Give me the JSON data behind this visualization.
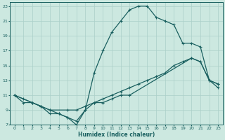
{
  "xlabel": "Humidex (Indice chaleur)",
  "bg_color": "#cce8e0",
  "grid_color": "#aacfc8",
  "line_color": "#1a6060",
  "xlim": [
    -0.5,
    23.5
  ],
  "ylim": [
    7,
    23.5
  ],
  "xticks": [
    0,
    1,
    2,
    3,
    4,
    5,
    6,
    7,
    8,
    9,
    10,
    11,
    12,
    13,
    14,
    15,
    16,
    17,
    18,
    19,
    20,
    21,
    22,
    23
  ],
  "yticks": [
    7,
    9,
    11,
    13,
    15,
    17,
    19,
    21,
    23
  ],
  "line1_x": [
    0,
    1,
    2,
    3,
    4,
    5,
    6,
    7,
    8,
    9,
    10,
    11,
    12,
    13,
    14,
    15,
    16,
    17,
    18,
    19,
    20,
    21,
    22,
    23
  ],
  "line1_y": [
    11,
    10.5,
    10,
    9.5,
    8.5,
    8.5,
    8,
    7,
    9,
    14,
    17,
    19.5,
    21,
    22.5,
    23,
    23,
    21.5,
    21,
    20.5,
    18,
    18,
    17.5,
    13,
    12
  ],
  "line2_x": [
    0,
    2,
    3,
    4,
    5,
    6,
    7,
    8,
    9,
    10,
    11,
    12,
    13,
    14,
    15,
    16,
    17,
    18,
    19,
    20,
    21,
    22,
    23
  ],
  "line2_y": [
    11,
    10,
    9.5,
    9,
    8.5,
    8,
    7.5,
    9,
    10,
    10.5,
    11,
    11.5,
    12,
    12.5,
    13,
    13.5,
    14,
    15,
    15.5,
    16,
    15.5,
    13,
    12.5
  ],
  "line3_x": [
    0,
    1,
    2,
    3,
    4,
    6,
    7,
    8,
    9,
    10,
    11,
    12,
    13,
    20,
    21,
    22,
    23
  ],
  "line3_y": [
    11,
    10,
    10,
    9.5,
    9,
    9,
    9,
    9.5,
    10,
    10,
    10.5,
    11,
    11,
    16,
    15.5,
    13,
    12.5
  ]
}
